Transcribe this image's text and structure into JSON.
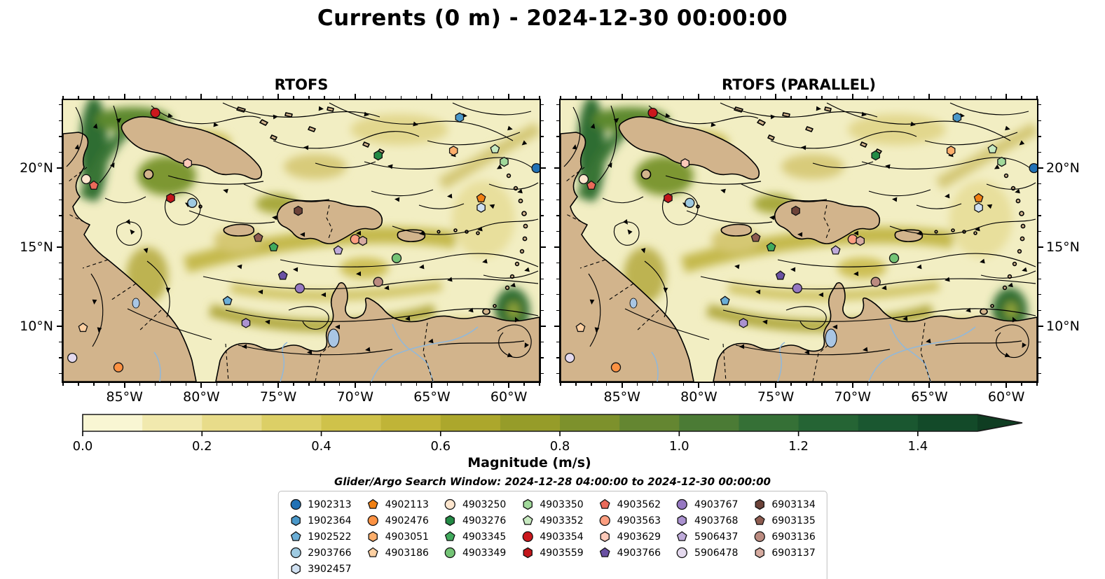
{
  "figure": {
    "title": "Currents (0 m) - 2024-12-30 00:00:00",
    "search_window": "Glider/Argo Search Window: 2024-12-28 04:00:00 to 2024-12-30 00:00:00"
  },
  "map_colors": {
    "land": "#d2b48c",
    "ocean": "#f2eec3",
    "river": "#8fb8dc",
    "lake": "#a9c6e4",
    "coastline": "#000000",
    "streamline": "#000000"
  },
  "chart_data": {
    "type": "heatmap",
    "subtype": "ocean-current-streamplot-map-with-float-positions",
    "title": "Currents (0 m) - 2024-12-30 00:00:00",
    "panels": [
      {
        "title": "RTOFS",
        "lat_label_side": "left"
      },
      {
        "title": "RTOFS (PARALLEL)",
        "lat_label_side": "right"
      }
    ],
    "axes": {
      "lon_w_range": [
        58.0,
        89.0
      ],
      "lat_n_range": [
        6.5,
        24.3
      ],
      "lon_major_ticks_w": [
        85,
        80,
        75,
        70,
        65,
        60
      ],
      "lon_tick_labels": [
        "85°W",
        "80°W",
        "75°W",
        "70°W",
        "65°W",
        "60°W"
      ],
      "lat_major_ticks_n": [
        20,
        15,
        10
      ],
      "lat_tick_labels": [
        "20°N",
        "15°N",
        "10°N"
      ],
      "minor_tick_interval_deg": 1
    },
    "colorbar": {
      "label": "Magnitude (m/s)",
      "range": [
        0,
        1.5
      ],
      "extend": "max",
      "tick_values": [
        0.0,
        0.2,
        0.4,
        0.6,
        0.8,
        1.0,
        1.2,
        1.4
      ],
      "tick_labels": [
        "0.0",
        "0.2",
        "0.4",
        "0.6",
        "0.8",
        "1.0",
        "1.2",
        "1.4"
      ],
      "segment_colors": [
        "#f9f6d3",
        "#f1e9ae",
        "#e8dc8a",
        "#dccf66",
        "#cfc24a",
        "#c0b437",
        "#aca72c",
        "#969c29",
        "#7d912c",
        "#648631",
        "#4b7b35",
        "#357036",
        "#256434",
        "#1a5730",
        "#134a29"
      ],
      "arrow_color": "#0f3d22"
    },
    "legend_columns": [
      [
        {
          "id": "1902313",
          "shape": "circle",
          "color": "#2171b5"
        },
        {
          "id": "1902364",
          "shape": "hexagon",
          "color": "#4a98c9"
        },
        {
          "id": "1902522",
          "shape": "pentagon",
          "color": "#6baed6"
        },
        {
          "id": "2903766",
          "shape": "circle",
          "color": "#9ecae1"
        },
        {
          "id": "3902457",
          "shape": "hexagon",
          "color": "#d0e1f2"
        }
      ],
      [
        {
          "id": "4902113",
          "shape": "pentagon",
          "color": "#f07f12"
        },
        {
          "id": "4902476",
          "shape": "circle",
          "color": "#fd9243"
        },
        {
          "id": "4903051",
          "shape": "hexagon",
          "color": "#fdae6b"
        },
        {
          "id": "4903186",
          "shape": "pentagon",
          "color": "#fdd0a2"
        }
      ],
      [
        {
          "id": "4903250",
          "shape": "circle",
          "color": "#fee6ce"
        },
        {
          "id": "4903276",
          "shape": "hexagon",
          "color": "#238b45"
        },
        {
          "id": "4903345",
          "shape": "pentagon",
          "color": "#41ab5d"
        },
        {
          "id": "4903349",
          "shape": "circle",
          "color": "#74c476"
        }
      ],
      [
        {
          "id": "4903350",
          "shape": "hexagon",
          "color": "#a1d99b"
        },
        {
          "id": "4903352",
          "shape": "pentagon",
          "color": "#c7e9c0"
        },
        {
          "id": "4903354",
          "shape": "circle",
          "color": "#cb181d"
        },
        {
          "id": "4903559",
          "shape": "hexagon",
          "color": "#c3161b"
        }
      ],
      [
        {
          "id": "4903562",
          "shape": "pentagon",
          "color": "#ea6a5a"
        },
        {
          "id": "4903563",
          "shape": "circle",
          "color": "#fc9e80"
        },
        {
          "id": "4903629",
          "shape": "hexagon",
          "color": "#fcc9b9"
        },
        {
          "id": "4903766",
          "shape": "pentagon",
          "color": "#6a51a3"
        }
      ],
      [
        {
          "id": "4903767",
          "shape": "circle",
          "color": "#9678c2"
        },
        {
          "id": "4903768",
          "shape": "hexagon",
          "color": "#ab92d0"
        },
        {
          "id": "5906437",
          "shape": "pentagon",
          "color": "#bfabda"
        },
        {
          "id": "5906478",
          "shape": "circle",
          "color": "#e4d9ee"
        }
      ],
      [
        {
          "id": "6903134",
          "shape": "hexagon",
          "color": "#6d4339"
        },
        {
          "id": "6903135",
          "shape": "pentagon",
          "color": "#8e5c50"
        },
        {
          "id": "6903136",
          "shape": "circle",
          "color": "#bb8b80"
        },
        {
          "id": "6903137",
          "shape": "hexagon",
          "color": "#d6aba0"
        }
      ]
    ],
    "floats": [
      {
        "id": "1902313",
        "lon_w": 58.2,
        "lat_n": 20.0
      },
      {
        "id": "1902364",
        "lon_w": 63.2,
        "lat_n": 23.2
      },
      {
        "id": "1902522",
        "lon_w": 78.3,
        "lat_n": 11.6
      },
      {
        "id": "2903766",
        "lon_w": 80.6,
        "lat_n": 17.8
      },
      {
        "id": "3902457",
        "lon_w": 61.8,
        "lat_n": 17.5
      },
      {
        "id": "4902113",
        "lon_w": 61.8,
        "lat_n": 18.1
      },
      {
        "id": "4902476",
        "lon_w": 85.4,
        "lat_n": 7.4
      },
      {
        "id": "4903051",
        "lon_w": 63.6,
        "lat_n": 21.1
      },
      {
        "id": "4903186",
        "lon_w": 87.7,
        "lat_n": 9.9
      },
      {
        "id": "4903250",
        "lon_w": 87.5,
        "lat_n": 19.3
      },
      {
        "id": "4903276",
        "lon_w": 68.5,
        "lat_n": 20.8
      },
      {
        "id": "4903345",
        "lon_w": 75.3,
        "lat_n": 15.0
      },
      {
        "id": "4903349",
        "lon_w": 67.3,
        "lat_n": 14.3
      },
      {
        "id": "4903350",
        "lon_w": 60.3,
        "lat_n": 20.4
      },
      {
        "id": "4903352",
        "lon_w": 60.9,
        "lat_n": 21.2
      },
      {
        "id": "4903354",
        "lon_w": 83.0,
        "lat_n": 23.5
      },
      {
        "id": "4903559",
        "lon_w": 82.0,
        "lat_n": 18.1
      },
      {
        "id": "4903562",
        "lon_w": 87.0,
        "lat_n": 18.9
      },
      {
        "id": "4903563",
        "lon_w": 70.0,
        "lat_n": 15.5
      },
      {
        "id": "4903629",
        "lon_w": 80.9,
        "lat_n": 20.3
      },
      {
        "id": "4903766",
        "lon_w": 74.7,
        "lat_n": 13.2
      },
      {
        "id": "4903767",
        "lon_w": 73.6,
        "lat_n": 12.4
      },
      {
        "id": "4903768",
        "lon_w": 77.1,
        "lat_n": 10.2
      },
      {
        "id": "5906437",
        "lon_w": 71.1,
        "lat_n": 14.8
      },
      {
        "id": "5906478",
        "lon_w": 88.4,
        "lat_n": 8.0
      },
      {
        "id": "6903134",
        "lon_w": 73.7,
        "lat_n": 17.3
      },
      {
        "id": "6903135",
        "lon_w": 76.3,
        "lat_n": 15.6
      },
      {
        "id": "6903136",
        "lon_w": 68.5,
        "lat_n": 12.8
      },
      {
        "id": "6903137",
        "lon_w": 69.5,
        "lat_n": 15.4
      }
    ]
  }
}
